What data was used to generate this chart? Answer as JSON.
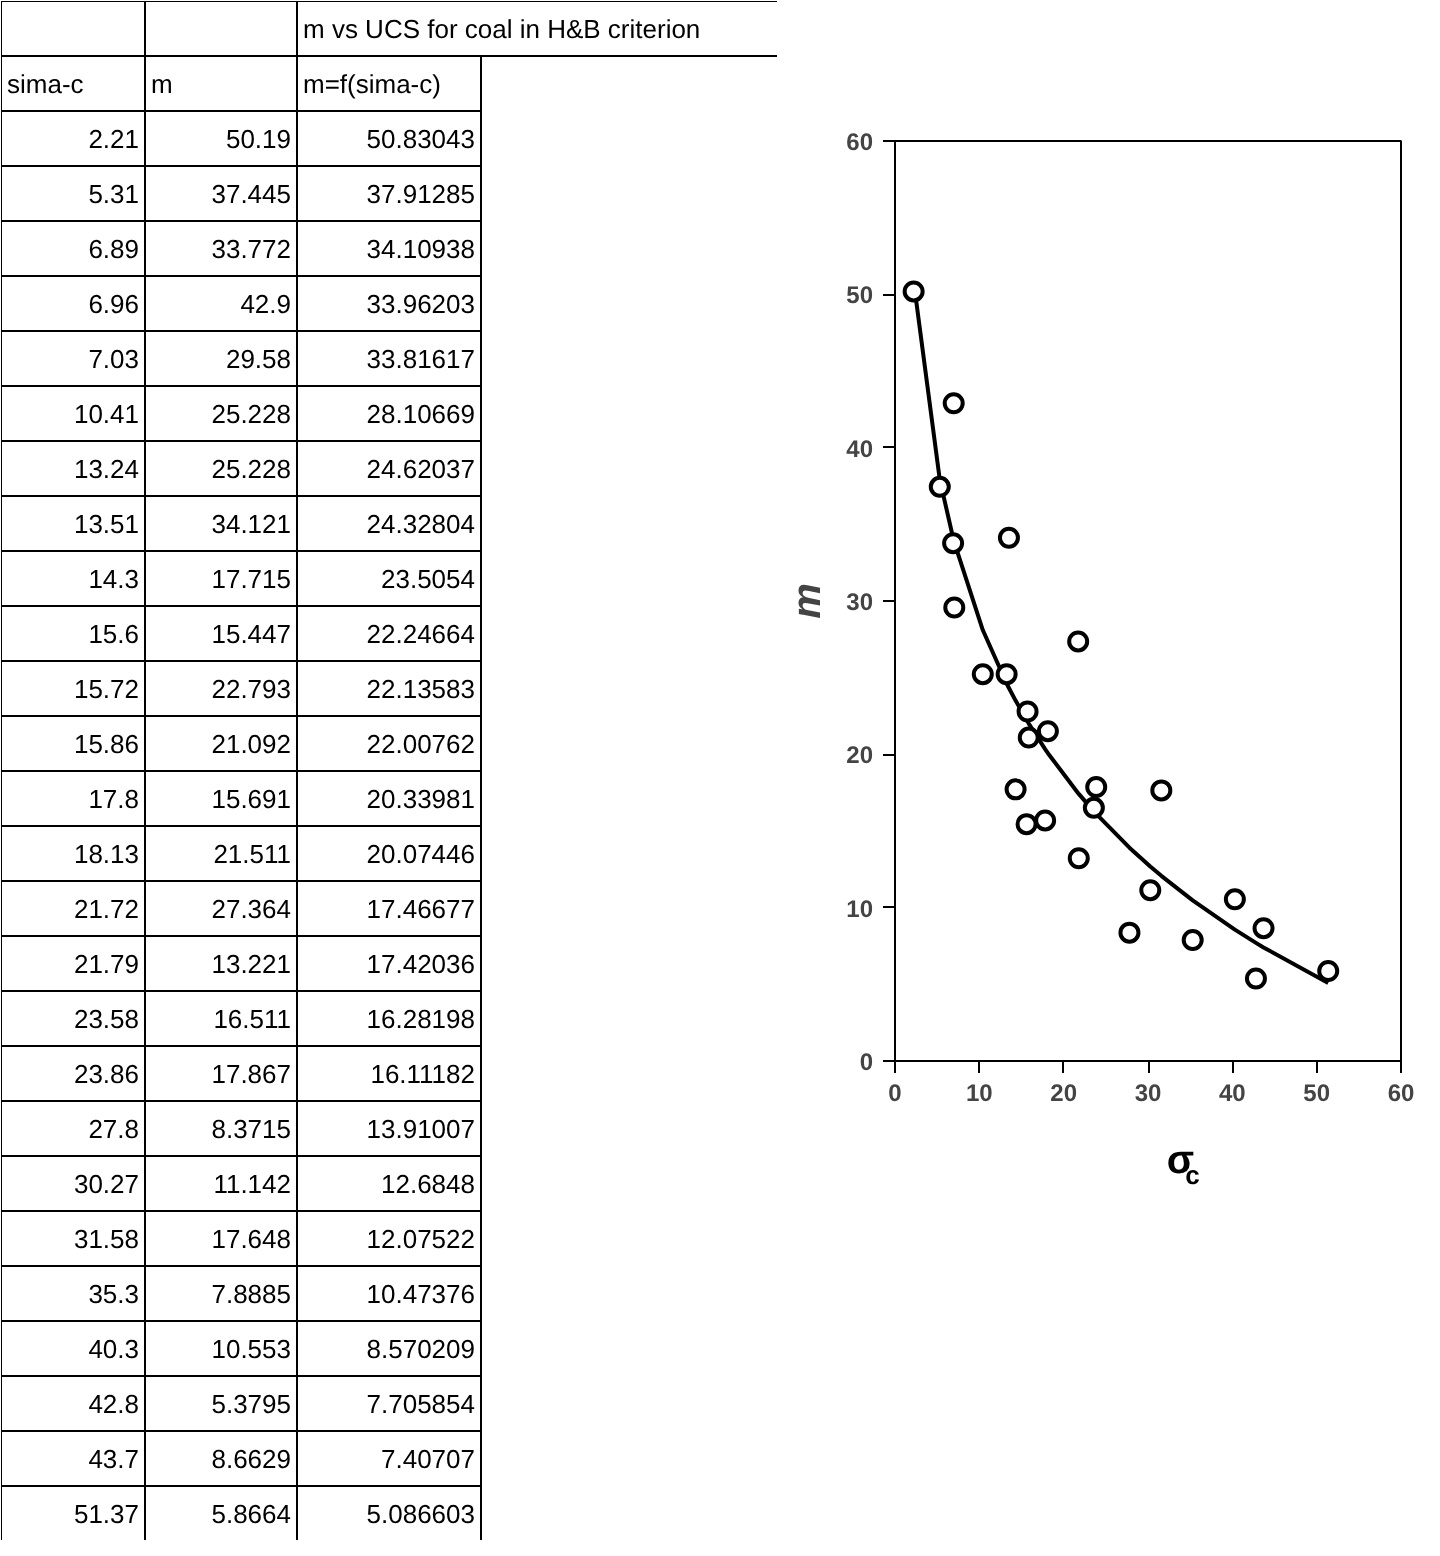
{
  "chart_data": [
    {
      "type": "other",
      "title": "m vs UCS for coal in H&B criterion",
      "annotations": [
        "sima-c",
        "m",
        "m=f(sima-c)",
        "2.21",
        "50.19",
        "50.83043",
        "5.31",
        "37.445",
        "37.91285",
        "6.89",
        "33.772",
        "34.10938",
        "6.96",
        "42.9",
        "33.96203",
        "7.03",
        "29.58",
        "33.81617",
        "10.41",
        "25.228",
        "28.10669",
        "13.24",
        "25.228",
        "24.62037",
        "13.51",
        "34.121",
        "24.32804",
        "14.3",
        "17.715",
        "23.5054",
        "15.6",
        "15.447",
        "22.24664",
        "15.72",
        "22.793",
        "22.13583",
        "15.86",
        "21.092",
        "22.00762",
        "17.8",
        "15.691",
        "20.33981",
        "18.13",
        "21.511",
        "20.07446",
        "21.72",
        "27.364",
        "17.46677",
        "21.79",
        "13.221",
        "17.42036",
        "23.58",
        "16.511",
        "16.28198",
        "23.86",
        "17.867",
        "16.11182",
        "27.8",
        "8.3715",
        "13.91007",
        "30.27",
        "11.142",
        "12.6848",
        "31.58",
        "17.648",
        "12.07522",
        "35.3",
        "7.8885",
        "10.47376",
        "40.3",
        "10.553",
        "8.570209",
        "42.8",
        "5.3795",
        "7.705854",
        "43.7",
        "8.6629",
        "7.40707",
        "51.37",
        "5.8664",
        "5.086603"
      ]
    },
    {
      "type": "scatter",
      "x": [
        2.21,
        5.31,
        6.89,
        6.96,
        7.03,
        10.41,
        13.24,
        13.51,
        14.3,
        15.6,
        15.72,
        15.86,
        17.8,
        18.13,
        21.72,
        21.79,
        23.58,
        23.86,
        27.8,
        30.27,
        31.58,
        35.3,
        40.3,
        42.8,
        43.7,
        51.37
      ],
      "series": [
        {
          "color": "#000000",
          "marker": "circle",
          "values": [
            50.19,
            37.445,
            33.772,
            42.9,
            29.58,
            25.228,
            25.228,
            34.121,
            17.715,
            15.447,
            22.793,
            21.092,
            15.691,
            21.511,
            27.364,
            13.221,
            16.511,
            17.867,
            8.3715,
            11.142,
            17.648,
            7.8885,
            10.553,
            5.3795,
            8.6629,
            5.8664
          ]
        },
        {
          "type": "line",
          "color": "#000000",
          "values": [
            50.83043,
            37.91285,
            34.10938,
            33.96203,
            33.81617,
            28.10669,
            24.62037,
            24.32804,
            23.5054,
            22.24664,
            22.13583,
            22.00762,
            20.33981,
            20.07446,
            17.46677,
            17.42036,
            16.28198,
            16.11182,
            13.91007,
            12.6848,
            12.07522,
            10.47376,
            8.570209,
            7.705854,
            7.40707,
            5.086603
          ]
        }
      ],
      "line_style": "solid",
      "xlabel": "σ$_{c}$",
      "ylabel": "m",
      "xlim": [
        0,
        60
      ],
      "xticks": [
        0,
        10,
        20,
        30,
        40,
        50,
        60
      ],
      "ylim": [
        0,
        60
      ],
      "yticks": [
        0,
        10,
        20,
        30,
        40,
        50,
        60
      ]
    }
  ]
}
